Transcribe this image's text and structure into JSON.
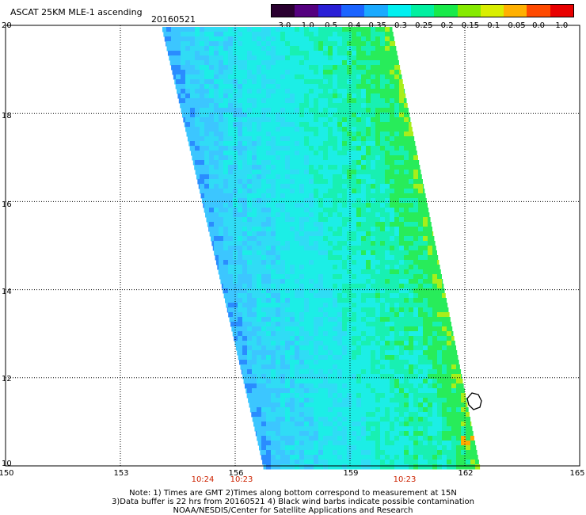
{
  "header": {
    "title": "ASCAT 25KM MLE-1 ascending",
    "date": "20160521"
  },
  "colorbar": {
    "labels": [
      "-3.0",
      "-1.0",
      "-0.5",
      "-0.4",
      "-0.35",
      "-0.3",
      "-0.25",
      "-0.2",
      "-0.15",
      "-0.1",
      "-0.05",
      "0.0",
      "1.0"
    ],
    "colors": [
      "#2a0030",
      "#55007f",
      "#2a1fd6",
      "#1b64ff",
      "#1aaaff",
      "#00f0f0",
      "#00f0a0",
      "#18ea4a",
      "#86ea00",
      "#d9ee00",
      "#ffb000",
      "#ff4a00",
      "#e80000"
    ]
  },
  "map": {
    "lat_labels": [
      "20",
      "18",
      "16",
      "14",
      "12",
      "10"
    ],
    "lon_labels": [
      "150",
      "153",
      "156",
      "159",
      "162",
      "165"
    ],
    "time_labels": [
      "10:24",
      "10:23",
      "10:23"
    ],
    "lat_range": [
      10,
      20
    ],
    "lon_range": [
      150,
      165
    ],
    "grid_lats": [
      18,
      16,
      14,
      12
    ],
    "grid_lons": [
      153,
      156,
      159,
      162
    ],
    "swath_colors": {
      "edge_blue": "#2a8cff",
      "mid_blue": "#3cc6ff",
      "light_blue": "#30dcf5",
      "cyan": "#1ceee6",
      "aqua_green": "#18f0b2",
      "green": "#28ec5a",
      "yellow_green": "#a8ee1a",
      "orange": "#ffaa00"
    }
  },
  "notes": {
    "line1": "Note: 1) Times are GMT 2)Times along bottom correspond to measurement at 15N",
    "line2": "3)Data buffer is 22 hrs from 20160521 4) Black wind barbs indicate possible contamination",
    "line3": "NOAA/NESDIS/Center for Satellite Applications and Research"
  }
}
